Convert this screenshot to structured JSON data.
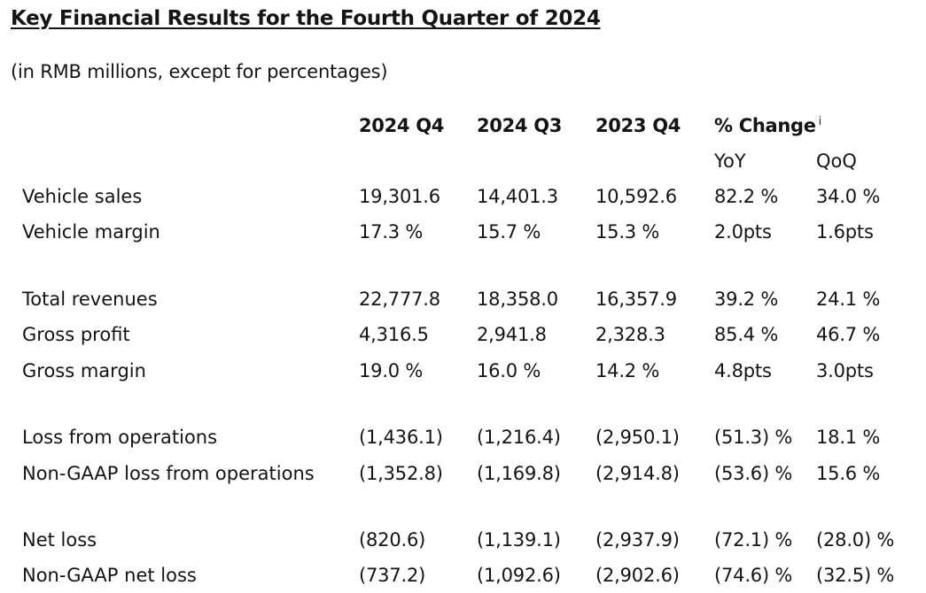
{
  "title": "Key Financial Results for the Fourth Quarter of 2024",
  "subtitle": "(in RMB millions, except for percentages)",
  "columns": [
    "2024 Q4",
    "2024 Q3",
    "2023 Q4",
    "% Change"
  ],
  "change_footnote": "i",
  "subcolumns": [
    "YoY",
    "QoQ"
  ],
  "rows": [
    {
      "label": "Vehicle sales",
      "values": [
        "19,301.6",
        "14,401.3",
        "10,592.6",
        "82.2 %",
        "34.0 %"
      ]
    },
    {
      "label": "Vehicle margin",
      "values": [
        "17.3 %",
        "15.7 %",
        "15.3 %",
        "2.0pts",
        "1.6pts"
      ]
    },
    {
      "label": "Total revenues",
      "values": [
        "22,777.8",
        "18,358.0",
        "16,357.9",
        "39.2 %",
        "24.1 %"
      ]
    },
    {
      "label": "Gross profit",
      "values": [
        "4,316.5",
        "2,941.8",
        "2,328.3",
        "85.4 %",
        "46.7 %"
      ]
    },
    {
      "label": "Gross margin",
      "values": [
        "19.0 %",
        "16.0 %",
        "14.2 %",
        "4.8pts",
        "3.0pts"
      ]
    },
    {
      "label": "Loss from operations",
      "values": [
        "(1,436.1)",
        "(1,216.4)",
        "(2,950.1)",
        "(51.3) %",
        "18.1 %"
      ]
    },
    {
      "label": "Non-GAAP loss from operations",
      "values": [
        "(1,352.8)",
        "(1,169.8)",
        "(2,914.8)",
        "(53.6) %",
        "15.6 %"
      ]
    },
    {
      "label": "Net loss",
      "values": [
        "(820.6)",
        "(1,139.1)",
        "(2,937.9)",
        "(72.1) %",
        "(28.0) %"
      ]
    },
    {
      "label": "Non-GAAP net loss",
      "values": [
        "(737.2)",
        "(1,092.6)",
        "(2,902.6)",
        "(74.6) %",
        "(32.5) %"
      ]
    }
  ]
}
